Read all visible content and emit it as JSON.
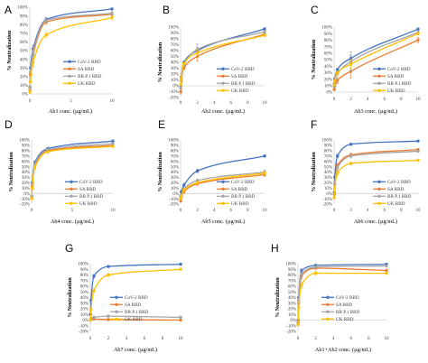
{
  "chart_data": [
    {
      "panel": "A",
      "type": "line",
      "xlabel": "Ab1 conc. (µg/mL)",
      "ylabel": "% Neutralization",
      "x": [
        0.016,
        0.08,
        0.4,
        2,
        10
      ],
      "xlim": [
        0,
        10
      ],
      "xticks": [
        "0",
        "5",
        "10"
      ],
      "ylim": [
        0,
        100
      ],
      "yticks": [
        "100%",
        "90%",
        "80%",
        "70%",
        "60%",
        "50%",
        "40%",
        "30%",
        "20%",
        "10%",
        "0%"
      ],
      "grid": false,
      "legend_position": "bottom-right",
      "series": [
        {
          "name": "CoV-2 RBD",
          "color": "#4472C4",
          "values": [
            8,
            30,
            52,
            86,
            98
          ],
          "err": [
            0,
            0,
            4,
            2,
            1
          ]
        },
        {
          "name": "SA RBD",
          "color": "#ED7D31",
          "values": [
            5,
            22,
            45,
            83,
            92
          ],
          "err": [
            0,
            0,
            9,
            3,
            2
          ]
        },
        {
          "name": "BR P.1 RBD",
          "color": "#A5A5A5",
          "values": [
            6,
            25,
            48,
            85,
            93
          ],
          "err": [
            0,
            0,
            6,
            2,
            2
          ]
        },
        {
          "name": "UK RBD",
          "color": "#FFC000",
          "values": [
            2,
            14,
            36,
            68,
            88
          ],
          "err": [
            0,
            0,
            5,
            3,
            2
          ]
        }
      ]
    },
    {
      "panel": "B",
      "type": "line",
      "xlabel": "Ab2 conc. (µg/mL)",
      "ylabel": "% Neutralization",
      "x": [
        0.016,
        0.08,
        0.4,
        2,
        10
      ],
      "xlim": [
        0,
        10
      ],
      "xticks": [
        "0",
        "2",
        "4",
        "6",
        "8",
        "10"
      ],
      "ylim": [
        -20,
        100
      ],
      "yticks": [
        "100%",
        "90%",
        "80%",
        "70%",
        "60%",
        "50%",
        "40%",
        "30%",
        "20%",
        "10%",
        "0%",
        "-10%",
        "-20%"
      ],
      "grid": false,
      "legend_position": "bottom-right",
      "series": [
        {
          "name": "CoV-2 RBD",
          "color": "#4472C4",
          "values": [
            0,
            15,
            40,
            60,
            97
          ],
          "err": [
            0,
            0,
            0,
            5,
            1
          ]
        },
        {
          "name": "SA RBD",
          "color": "#ED7D31",
          "values": [
            -10,
            8,
            30,
            50,
            88
          ],
          "err": [
            4,
            0,
            0,
            8,
            2
          ]
        },
        {
          "name": "BR P.1 RBD",
          "color": "#A5A5A5",
          "values": [
            -4,
            12,
            35,
            62,
            92
          ],
          "err": [
            0,
            0,
            0,
            10,
            2
          ]
        },
        {
          "name": "UK RBD",
          "color": "#FFC000",
          "values": [
            2,
            14,
            38,
            56,
            86
          ],
          "err": [
            0,
            0,
            0,
            6,
            2
          ]
        }
      ]
    },
    {
      "panel": "C",
      "type": "line",
      "xlabel": "Ab3 conc. (µg/mL)",
      "ylabel": "% Neutralization",
      "x": [
        0.016,
        0.08,
        0.4,
        2,
        10
      ],
      "xlim": [
        0,
        10
      ],
      "xticks": [
        "0",
        "2",
        "4",
        "6",
        "8",
        "10"
      ],
      "ylim": [
        0,
        100
      ],
      "yticks": [
        "100%",
        "90%",
        "80%",
        "70%",
        "60%",
        "50%",
        "40%",
        "30%",
        "20%",
        "10%",
        "0%"
      ],
      "grid": false,
      "legend_position": "bottom-right",
      "series": [
        {
          "name": "CoV-2 RBD",
          "color": "#4472C4",
          "values": [
            12,
            20,
            35,
            52,
            97
          ],
          "err": [
            0,
            0,
            0,
            4,
            1
          ]
        },
        {
          "name": "SA RBD",
          "color": "#ED7D31",
          "values": [
            4,
            9,
            18,
            32,
            80
          ],
          "err": [
            0,
            0,
            5,
            10,
            4
          ]
        },
        {
          "name": "BR P.1 RBD",
          "color": "#A5A5A5",
          "values": [
            9,
            16,
            28,
            47,
            92
          ],
          "err": [
            0,
            0,
            0,
            15,
            2
          ]
        },
        {
          "name": "UK RBD",
          "color": "#FFC000",
          "values": [
            11,
            18,
            30,
            43,
            90
          ],
          "err": [
            0,
            0,
            0,
            6,
            2
          ]
        }
      ]
    },
    {
      "panel": "D",
      "type": "line",
      "xlabel": "Ab4 conc. (µg/mL)",
      "ylabel": "% Neutralization",
      "x": [
        0.016,
        0.08,
        0.4,
        2,
        10
      ],
      "xlim": [
        0,
        10
      ],
      "xticks": [
        "0",
        "5",
        "10"
      ],
      "ylim": [
        -20,
        100
      ],
      "yticks": [
        "100%",
        "90%",
        "80%",
        "70%",
        "60%",
        "50%",
        "40%",
        "30%",
        "20%",
        "10%",
        "0%",
        "-10%",
        "-20%"
      ],
      "grid": false,
      "legend_position": "bottom-right",
      "series": [
        {
          "name": "CoV-2 RBD",
          "color": "#4472C4",
          "values": [
            -5,
            20,
            58,
            84,
            98
          ],
          "err": [
            0,
            0,
            3,
            2,
            1
          ]
        },
        {
          "name": "SA RBD",
          "color": "#ED7D31",
          "values": [
            -8,
            14,
            52,
            80,
            90
          ],
          "err": [
            0,
            0,
            4,
            2,
            2
          ]
        },
        {
          "name": "BR P.1 RBD",
          "color": "#A5A5A5",
          "values": [
            -6,
            17,
            55,
            82,
            93
          ],
          "err": [
            0,
            0,
            3,
            2,
            2
          ]
        },
        {
          "name": "UK RBD",
          "color": "#FFC000",
          "values": [
            -10,
            10,
            48,
            78,
            88
          ],
          "err": [
            0,
            0,
            4,
            3,
            2
          ]
        }
      ]
    },
    {
      "panel": "E",
      "type": "line",
      "xlabel": "Ab5 conc. (µg/mL)",
      "ylabel": "% Neutralization",
      "x": [
        0.016,
        0.08,
        0.4,
        2,
        10
      ],
      "xlim": [
        0,
        10
      ],
      "xticks": [
        "0",
        "2",
        "4",
        "6",
        "8",
        "10"
      ],
      "ylim": [
        -20,
        100
      ],
      "yticks": [
        "100%",
        "90%",
        "80%",
        "70%",
        "60%",
        "50%",
        "40%",
        "30%",
        "20%",
        "10%",
        "0%",
        "-10%",
        "-20%"
      ],
      "grid": false,
      "legend_position": "bottom-right",
      "series": [
        {
          "name": "CoV-2 RBD",
          "color": "#4472C4",
          "values": [
            -5,
            3,
            15,
            42,
            70
          ],
          "err": [
            0,
            0,
            4,
            3,
            2
          ]
        },
        {
          "name": "SA RBD",
          "color": "#ED7D31",
          "values": [
            -14,
            -8,
            3,
            18,
            35
          ],
          "err": [
            0,
            0,
            3,
            3,
            3
          ]
        },
        {
          "name": "BR P.1 RBD",
          "color": "#A5A5A5",
          "values": [
            -8,
            -3,
            8,
            24,
            40
          ],
          "err": [
            0,
            0,
            5,
            3,
            4
          ]
        },
        {
          "name": "UK RBD",
          "color": "#FFC000",
          "values": [
            -10,
            -5,
            6,
            20,
            38
          ],
          "err": [
            0,
            0,
            3,
            3,
            3
          ]
        }
      ]
    },
    {
      "panel": "F",
      "type": "line",
      "xlabel": "Ab6 conc. (µg/mL)",
      "ylabel": "% Neutralization",
      "x": [
        0.016,
        0.08,
        0.4,
        2,
        10
      ],
      "xlim": [
        0,
        10
      ],
      "xticks": [
        "0",
        "2",
        "4",
        "6",
        "8",
        "10"
      ],
      "ylim": [
        -20,
        100
      ],
      "yticks": [
        "100%",
        "90%",
        "80%",
        "70%",
        "60%",
        "50%",
        "40%",
        "30%",
        "20%",
        "10%",
        "0%",
        "-10%",
        "-20%"
      ],
      "grid": false,
      "legend_position": "bottom-right",
      "series": [
        {
          "name": "CoV-2 RBD",
          "color": "#4472C4",
          "values": [
            2,
            30,
            70,
            92,
            98
          ],
          "err": [
            0,
            0,
            3,
            2,
            1
          ]
        },
        {
          "name": "SA RBD",
          "color": "#ED7D31",
          "values": [
            -2,
            18,
            52,
            72,
            82
          ],
          "err": [
            0,
            0,
            4,
            4,
            2
          ]
        },
        {
          "name": "BR P.1 RBD",
          "color": "#A5A5A5",
          "values": [
            0,
            16,
            48,
            70,
            79
          ],
          "err": [
            0,
            0,
            4,
            4,
            2
          ]
        },
        {
          "name": "UK RBD",
          "color": "#FFC000",
          "values": [
            -8,
            10,
            38,
            56,
            62
          ],
          "err": [
            0,
            0,
            4,
            3,
            2
          ]
        }
      ]
    },
    {
      "panel": "G",
      "type": "line",
      "xlabel": "Ab7 conc. (µg/mL)",
      "ylabel": "% Neutralization",
      "x": [
        0.016,
        0.08,
        0.4,
        2,
        10
      ],
      "xlim": [
        0,
        10
      ],
      "xticks": [
        "0",
        "2",
        "4",
        "6",
        "8",
        "10"
      ],
      "ylim": [
        -20,
        100
      ],
      "yticks": [
        "100%",
        "90%",
        "80%",
        "70%",
        "60%",
        "50%",
        "40%",
        "30%",
        "20%",
        "10%",
        "0%",
        "-10%",
        "-20%"
      ],
      "grid": false,
      "legend_position": "center",
      "series": [
        {
          "name": "CoV-2 RBD",
          "color": "#4472C4",
          "values": [
            10,
            35,
            78,
            95,
            99
          ],
          "err": [
            0,
            0,
            3,
            1,
            1
          ]
        },
        {
          "name": "SA RBD",
          "color": "#ED7D31",
          "values": [
            0,
            2,
            2,
            1,
            0
          ],
          "err": [
            0,
            0,
            0,
            0,
            0
          ]
        },
        {
          "name": "BR P.1 RBD",
          "color": "#A5A5A5",
          "values": [
            0,
            3,
            5,
            7,
            5
          ],
          "err": [
            0,
            0,
            0,
            0,
            0
          ]
        },
        {
          "name": "UK RBD",
          "color": "#FFC000",
          "values": [
            0,
            18,
            52,
            80,
            90
          ],
          "err": [
            0,
            0,
            4,
            3,
            2
          ]
        }
      ]
    },
    {
      "panel": "H",
      "type": "line",
      "xlabel": "Ab1+Ab2 conc. (µg/mL)",
      "ylabel": "% Neutralization",
      "x": [
        0.016,
        0.08,
        0.4,
        2,
        10
      ],
      "xlim": [
        0,
        10
      ],
      "xticks": [
        "0",
        "2",
        "4",
        "6",
        "8",
        "10"
      ],
      "ylim": [
        -20,
        100
      ],
      "yticks": [
        "100%",
        "90%",
        "80%",
        "70%",
        "60%",
        "50%",
        "40%",
        "30%",
        "20%",
        "10%",
        "0%",
        "-10%",
        "-20%"
      ],
      "grid": false,
      "legend_position": "center",
      "series": [
        {
          "name": "CoV-2 RBD",
          "color": "#4472C4",
          "values": [
            0,
            40,
            88,
            97,
            99
          ],
          "err": [
            0,
            0,
            3,
            1,
            1
          ]
        },
        {
          "name": "SA RBD",
          "color": "#ED7D31",
          "values": [
            -5,
            30,
            78,
            92,
            88
          ],
          "err": [
            0,
            0,
            5,
            2,
            2
          ]
        },
        {
          "name": "BR P.1 RBD",
          "color": "#A5A5A5",
          "values": [
            -3,
            35,
            82,
            94,
            96
          ],
          "err": [
            0,
            0,
            8,
            2,
            1
          ]
        },
        {
          "name": "UK RBD",
          "color": "#FFC000",
          "values": [
            -8,
            22,
            62,
            83,
            83
          ],
          "err": [
            0,
            0,
            6,
            3,
            2
          ]
        }
      ]
    }
  ]
}
